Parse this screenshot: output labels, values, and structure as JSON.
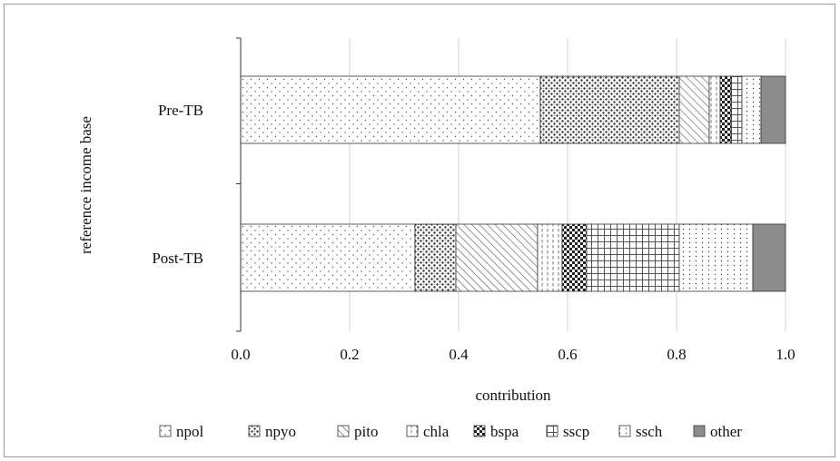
{
  "chart_data": {
    "type": "bar",
    "orientation": "horizontal",
    "stacked": true,
    "title": "",
    "xlabel": "contribution",
    "ylabel": "reference income base",
    "xlim": [
      0,
      1
    ],
    "xticks": [
      "0.0",
      "0.2",
      "0.4",
      "0.6",
      "0.8",
      "1.0"
    ],
    "grid": true,
    "legend_position": "bottom",
    "categories": [
      "Pre-TB",
      "Post-TB"
    ],
    "series": [
      {
        "name": "npol",
        "pattern": "dots-sparse",
        "values": [
          0.55,
          0.32
        ]
      },
      {
        "name": "npyo",
        "pattern": "dots-dense",
        "values": [
          0.255,
          0.075
        ]
      },
      {
        "name": "pito",
        "pattern": "diagonal",
        "values": [
          0.055,
          0.15
        ]
      },
      {
        "name": "chla",
        "pattern": "vertical-dash",
        "values": [
          0.02,
          0.045
        ]
      },
      {
        "name": "bspa",
        "pattern": "checker",
        "values": [
          0.02,
          0.045
        ]
      },
      {
        "name": "sscp",
        "pattern": "grid",
        "values": [
          0.02,
          0.17
        ]
      },
      {
        "name": "ssch",
        "pattern": "vertical-dots",
        "values": [
          0.035,
          0.135
        ]
      },
      {
        "name": "other",
        "pattern": "solid-gray",
        "values": [
          0.045,
          0.06
        ]
      }
    ],
    "colors": {
      "other": "#8c8c8c",
      "grid": "#cfcfcf",
      "frame": "#9a9a9a"
    }
  }
}
